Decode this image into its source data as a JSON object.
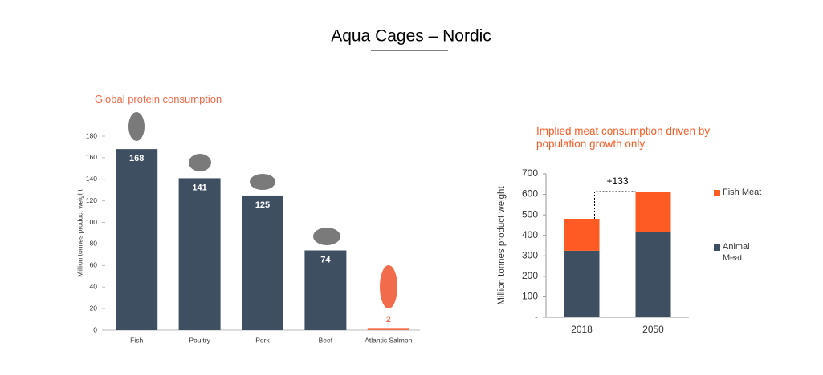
{
  "page_title": "Aqua Cages – Nordic",
  "chart_data": [
    {
      "type": "bar",
      "title": "Global protein consumption",
      "y_label": "Million tonnes product weight",
      "categories": [
        "Fish",
        "Poultry",
        "Pork",
        "Beef",
        "Atlantic Salmon"
      ],
      "values": [
        168,
        141,
        125,
        74,
        2
      ],
      "colors": [
        "#3d4f61",
        "#3d4f61",
        "#3d4f61",
        "#3d4f61",
        "#f26b4a"
      ],
      "ylim": [
        0,
        180
      ],
      "yticks": [
        0,
        20,
        40,
        60,
        80,
        100,
        120,
        140,
        160,
        180
      ]
    },
    {
      "type": "stacked-bar",
      "title": "Implied meat consumption driven by population growth only",
      "y_label": "Million tonnes product weight",
      "categories": [
        "2018",
        "2050"
      ],
      "series": [
        {
          "name": "Animal Meat",
          "color": "#3d4f61",
          "values": [
            325,
            415
          ]
        },
        {
          "name": "Fish Meat",
          "color": "#fd5a24",
          "values": [
            156,
            199
          ]
        }
      ],
      "annotation": "+133",
      "ylim": [
        0,
        700
      ],
      "yticks": [
        {
          "value": 0,
          "label": "-"
        },
        100,
        200,
        300,
        400,
        500,
        600,
        700
      ]
    }
  ]
}
